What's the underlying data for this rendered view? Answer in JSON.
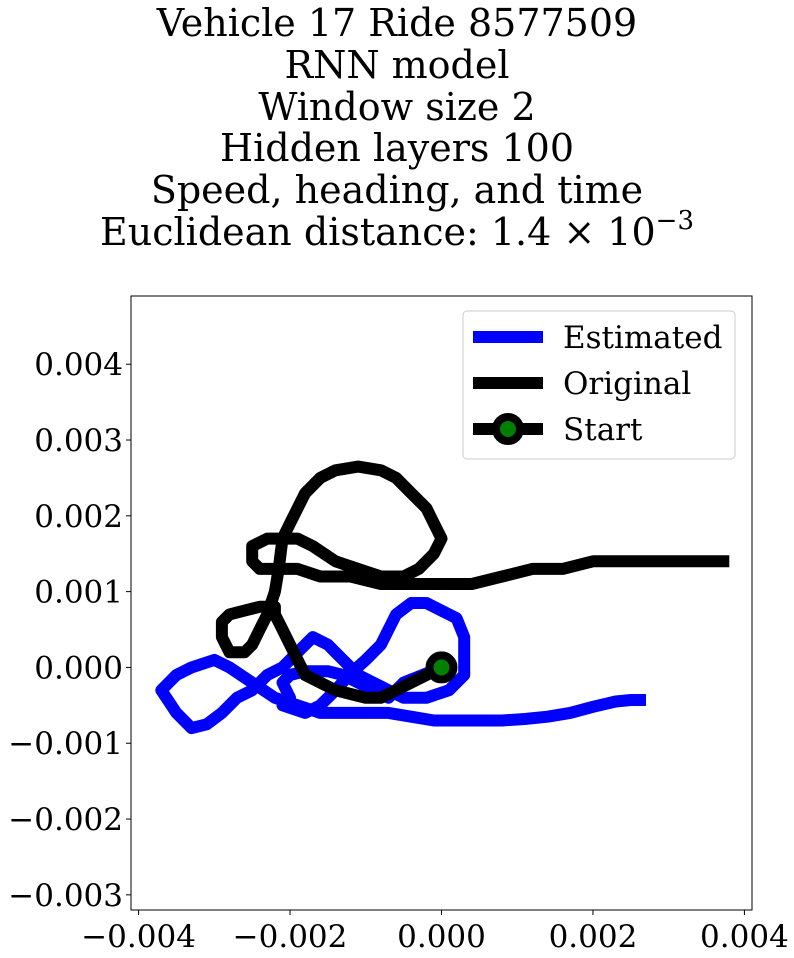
{
  "chart_data": {
    "type": "line",
    "title_lines": [
      "Vehicle 17 Ride 8577509",
      "RNN model",
      "Window size 2",
      "Hidden layers 100",
      "Speed, heading, and time",
      "Euclidean distance: 1.4 × 10"
    ],
    "title_exponent": "−3",
    "xlim": [
      -0.0041,
      0.0041
    ],
    "ylim": [
      -0.0032,
      0.0049
    ],
    "xticks": [
      -0.004,
      -0.002,
      0.0,
      0.002,
      0.004
    ],
    "xtick_labels": [
      "−0.004",
      "−0.002",
      "0.000",
      "0.002",
      "0.004"
    ],
    "yticks": [
      0.004,
      0.003,
      0.002,
      0.001,
      0.0,
      -0.001,
      -0.002,
      -0.003
    ],
    "ytick_labels": [
      "0.004",
      "0.003",
      "0.002",
      "0.001",
      "0.000",
      "−0.001",
      "−0.002",
      "−0.003"
    ],
    "grid": false,
    "legend_position": "upper-right",
    "series": [
      {
        "name": "Estimated",
        "color": "#0000ff",
        "points": [
          [
            0.0,
            0.0
          ],
          [
            -0.0005,
            -0.0002
          ],
          [
            -0.0007,
            -0.0004
          ],
          [
            -0.0009,
            -0.0003
          ],
          [
            -0.0011,
            -0.0002
          ],
          [
            -0.0013,
            -0.0001
          ],
          [
            -0.0015,
            -5e-05
          ],
          [
            -0.0018,
            -5e-05
          ],
          [
            -0.002,
            -0.0001
          ],
          [
            -0.0021,
            -0.0002
          ],
          [
            -0.002,
            -0.0004
          ],
          [
            -0.0021,
            -0.0005
          ],
          [
            -0.0018,
            -0.0006
          ],
          [
            -0.0016,
            -0.0005
          ],
          [
            -0.0014,
            -0.0003
          ],
          [
            -0.0012,
            -8e-05
          ],
          [
            -0.001,
            0.0001
          ],
          [
            -0.0008,
            0.0003
          ],
          [
            -0.0007,
            0.0005
          ],
          [
            -0.0006,
            0.0007
          ],
          [
            -0.0004,
            0.00085
          ],
          [
            -0.0002,
            0.00085
          ],
          [
            0.0,
            0.00075
          ],
          [
            0.0002,
            0.00065
          ],
          [
            0.0003,
            0.0004
          ],
          [
            0.0003,
            0.0001
          ],
          [
            0.0003,
            -0.0001
          ],
          [
            0.0001,
            -0.0003
          ],
          [
            -0.0002,
            -0.0004
          ],
          [
            -0.0005,
            -0.0004
          ],
          [
            -0.0007,
            -0.0003
          ],
          [
            -0.0009,
            -0.0002
          ],
          [
            -0.0011,
            -0.0001
          ],
          [
            -0.0013,
            0.0001
          ],
          [
            -0.0015,
            0.0003
          ],
          [
            -0.0017,
            0.0004
          ],
          [
            -0.0019,
            0.0002
          ],
          [
            -0.0021,
            0.0
          ],
          [
            -0.0023,
            -0.0001
          ],
          [
            -0.0025,
            -0.0003
          ],
          [
            -0.0027,
            -0.0004
          ],
          [
            -0.0029,
            -0.0006
          ],
          [
            -0.0031,
            -0.00075
          ],
          [
            -0.0033,
            -0.0008
          ],
          [
            -0.0035,
            -0.0006
          ],
          [
            -0.0037,
            -0.0003
          ],
          [
            -0.0035,
            -0.0001
          ],
          [
            -0.0033,
            0.0
          ],
          [
            -0.003,
            0.0001
          ],
          [
            -0.0028,
            0.0
          ],
          [
            -0.0025,
            -0.0002
          ],
          [
            -0.0022,
            -0.0004
          ],
          [
            -0.0019,
            -0.0005
          ],
          [
            -0.0016,
            -0.0006
          ],
          [
            -0.0013,
            -0.0006
          ],
          [
            -0.001,
            -0.0006
          ],
          [
            -0.0007,
            -0.0006
          ],
          [
            -0.0004,
            -0.00065
          ],
          [
            -0.0001,
            -0.0007
          ],
          [
            0.0002,
            -0.0007
          ],
          [
            0.0005,
            -0.0007
          ],
          [
            0.0008,
            -0.0007
          ],
          [
            0.0011,
            -0.00068
          ],
          [
            0.0014,
            -0.00065
          ],
          [
            0.0017,
            -0.0006
          ],
          [
            0.002,
            -0.00052
          ],
          [
            0.0023,
            -0.00045
          ],
          [
            0.0025,
            -0.00043
          ],
          [
            0.0027,
            -0.00043
          ]
        ]
      },
      {
        "name": "Original",
        "color": "#000000",
        "points": [
          [
            0.0,
            0.0
          ],
          [
            -0.0002,
            -0.0001
          ],
          [
            -0.0004,
            -0.0002
          ],
          [
            -0.0006,
            -0.0003
          ],
          [
            -0.0008,
            -0.0004
          ],
          [
            -0.001,
            -0.0004
          ],
          [
            -0.0012,
            -0.00035
          ],
          [
            -0.0014,
            -0.0003
          ],
          [
            -0.0016,
            -0.0002
          ],
          [
            -0.0018,
            -0.0001
          ],
          [
            -0.0019,
            0.0001
          ],
          [
            -0.002,
            0.0003
          ],
          [
            -0.0021,
            0.0005
          ],
          [
            -0.0022,
            0.0007
          ],
          [
            -0.0022,
            0.0008
          ],
          [
            -0.0024,
            0.0008
          ],
          [
            -0.0026,
            0.00075
          ],
          [
            -0.0028,
            0.0007
          ],
          [
            -0.0029,
            0.0006
          ],
          [
            -0.0029,
            0.0004
          ],
          [
            -0.0028,
            0.0002
          ],
          [
            -0.0026,
            0.0002
          ],
          [
            -0.0025,
            0.0003
          ],
          [
            -0.0024,
            0.0005
          ],
          [
            -0.0023,
            0.0007
          ],
          [
            -0.0022,
            0.001
          ],
          [
            -0.00215,
            0.0013
          ],
          [
            -0.0021,
            0.0017
          ],
          [
            -0.002,
            0.0019
          ],
          [
            -0.0019,
            0.0021
          ],
          [
            -0.0018,
            0.0023
          ],
          [
            -0.0016,
            0.0025
          ],
          [
            -0.0014,
            0.0026
          ],
          [
            -0.0011,
            0.00265
          ],
          [
            -0.0008,
            0.0026
          ],
          [
            -0.0006,
            0.0025
          ],
          [
            -0.0004,
            0.0023
          ],
          [
            -0.0002,
            0.0021
          ],
          [
            -0.0001,
            0.0019
          ],
          [
            0.0,
            0.0017
          ],
          [
            -0.0001,
            0.0015
          ],
          [
            -0.0003,
            0.0013
          ],
          [
            -0.0005,
            0.0012
          ],
          [
            -0.0008,
            0.0012
          ],
          [
            -0.0011,
            0.0013
          ],
          [
            -0.0014,
            0.0014
          ],
          [
            -0.0017,
            0.0016
          ],
          [
            -0.0019,
            0.0017
          ],
          [
            -0.0021,
            0.0017
          ],
          [
            -0.0023,
            0.0017
          ],
          [
            -0.0025,
            0.0016
          ],
          [
            -0.0025,
            0.0014
          ],
          [
            -0.0024,
            0.0013
          ],
          [
            -0.0022,
            0.0013
          ],
          [
            -0.0019,
            0.0013
          ],
          [
            -0.0016,
            0.0012
          ],
          [
            -0.0012,
            0.0012
          ],
          [
            -0.0008,
            0.0011
          ],
          [
            -0.0004,
            0.0011
          ],
          [
            0.0,
            0.0011
          ],
          [
            0.0004,
            0.0011
          ],
          [
            0.0008,
            0.0012
          ],
          [
            0.0012,
            0.0013
          ],
          [
            0.0016,
            0.0013
          ],
          [
            0.002,
            0.0014
          ],
          [
            0.0024,
            0.0014
          ],
          [
            0.0028,
            0.0014
          ],
          [
            0.0032,
            0.0014
          ],
          [
            0.0036,
            0.0014
          ],
          [
            0.0038,
            0.0014
          ]
        ]
      }
    ],
    "start_marker": {
      "name": "Start",
      "point": [
        0.0,
        0.0
      ],
      "edge_color": "#000000",
      "face_color": "#008000"
    },
    "legend": [
      {
        "label": "Estimated",
        "color": "#0000ff",
        "marker": false
      },
      {
        "label": "Original",
        "color": "#000000",
        "marker": false
      },
      {
        "label": "Start",
        "color": "#000000",
        "marker": true
      }
    ]
  }
}
